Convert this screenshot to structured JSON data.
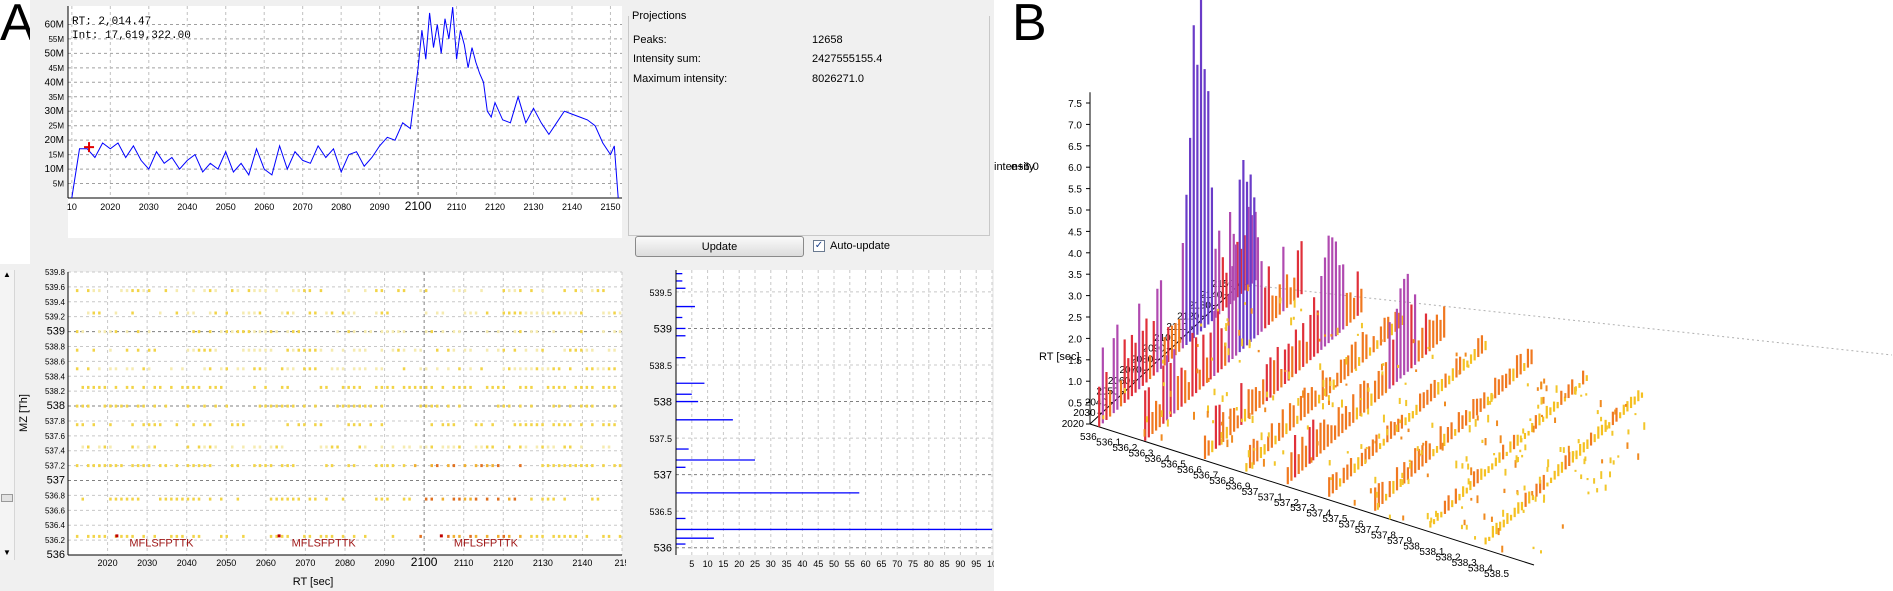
{
  "panel_a": {
    "letter": "A"
  },
  "panel_b": {
    "letter": "B"
  },
  "tic": {
    "rt_label": "RT:",
    "rt_value": "2,014.47",
    "int_label": "Int:",
    "int_value": "17,619,322.00",
    "y_ticks": [
      {
        "v": 5,
        "t": "5M",
        "major": false
      },
      {
        "v": 10,
        "t": "10M",
        "major": true
      },
      {
        "v": 15,
        "t": "15M",
        "major": false
      },
      {
        "v": 20,
        "t": "20M",
        "major": true
      },
      {
        "v": 25,
        "t": "25M",
        "major": false
      },
      {
        "v": 30,
        "t": "30M",
        "major": true
      },
      {
        "v": 35,
        "t": "35M",
        "major": false
      },
      {
        "v": 40,
        "t": "40M",
        "major": true
      },
      {
        "v": 45,
        "t": "45M",
        "major": false
      },
      {
        "v": 50,
        "t": "50M",
        "major": true
      },
      {
        "v": 55,
        "t": "55M",
        "major": false
      },
      {
        "v": 60,
        "t": "60M",
        "major": true
      }
    ],
    "x_ticks": [
      {
        "v": 2010,
        "t": "10",
        "major": false
      },
      {
        "v": 2020,
        "t": "2020",
        "major": false
      },
      {
        "v": 2030,
        "t": "2030",
        "major": false
      },
      {
        "v": 2040,
        "t": "2040",
        "major": false
      },
      {
        "v": 2050,
        "t": "2050",
        "major": false
      },
      {
        "v": 2060,
        "t": "2060",
        "major": false
      },
      {
        "v": 2070,
        "t": "2070",
        "major": false
      },
      {
        "v": 2080,
        "t": "2080",
        "major": false
      },
      {
        "v": 2090,
        "t": "2090",
        "major": false
      },
      {
        "v": 2100,
        "t": "2100",
        "major": true
      },
      {
        "v": 2110,
        "t": "2110",
        "major": false
      },
      {
        "v": 2120,
        "t": "2120",
        "major": false
      },
      {
        "v": 2130,
        "t": "2130",
        "major": false
      },
      {
        "v": 2140,
        "t": "2140",
        "major": false
      },
      {
        "v": 2150,
        "t": "2150",
        "major": false
      }
    ]
  },
  "projections": {
    "title": "Projections",
    "rows": [
      {
        "label": "Peaks:",
        "value": "12658"
      },
      {
        "label": "Intensity sum:",
        "value": "2427555155.4"
      },
      {
        "label": "Maximum intensity:",
        "value": "8026271.0"
      }
    ],
    "update_label": "Update",
    "auto_update_label": "Auto-update",
    "auto_update_checked": "✓"
  },
  "peak_map": {
    "ylabel": "MZ [Th]",
    "xlabel": "RT [sec]",
    "annotation": "MFLSFPTTK",
    "y_ticks": [
      {
        "v": 536,
        "t": "536",
        "major": true
      },
      {
        "v": 536.2,
        "t": "536.2",
        "major": false
      },
      {
        "v": 536.4,
        "t": "536.4",
        "major": false
      },
      {
        "v": 536.6,
        "t": "536.6",
        "major": false
      },
      {
        "v": 536.8,
        "t": "536.8",
        "major": false
      },
      {
        "v": 537,
        "t": "537",
        "major": true
      },
      {
        "v": 537.2,
        "t": "537.2",
        "major": false
      },
      {
        "v": 537.4,
        "t": "537.4",
        "major": false
      },
      {
        "v": 537.6,
        "t": "537.6",
        "major": false
      },
      {
        "v": 537.8,
        "t": "537.8",
        "major": false
      },
      {
        "v": 538,
        "t": "538",
        "major": true
      },
      {
        "v": 538.2,
        "t": "538.2",
        "major": false
      },
      {
        "v": 538.4,
        "t": "538.4",
        "major": false
      },
      {
        "v": 538.6,
        "t": "538.6",
        "major": false
      },
      {
        "v": 538.8,
        "t": "538.8",
        "major": false
      },
      {
        "v": 539,
        "t": "539",
        "major": true
      },
      {
        "v": 539.2,
        "t": "539.2",
        "major": false
      },
      {
        "v": 539.4,
        "t": "539.4",
        "major": false
      },
      {
        "v": 539.6,
        "t": "539.6",
        "major": false
      },
      {
        "v": 539.8,
        "t": "539.8",
        "major": false
      }
    ],
    "x_ticks": [
      {
        "v": 2020,
        "t": "2020",
        "major": false
      },
      {
        "v": 2030,
        "t": "2030",
        "major": false
      },
      {
        "v": 2040,
        "t": "2040",
        "major": false
      },
      {
        "v": 2050,
        "t": "2050",
        "major": false
      },
      {
        "v": 2060,
        "t": "2060",
        "major": false
      },
      {
        "v": 2070,
        "t": "2070",
        "major": false
      },
      {
        "v": 2080,
        "t": "2080",
        "major": false
      },
      {
        "v": 2090,
        "t": "2090",
        "major": false
      },
      {
        "v": 2100,
        "t": "2100",
        "major": true
      },
      {
        "v": 2110,
        "t": "2110",
        "major": false
      },
      {
        "v": 2120,
        "t": "2120",
        "major": false
      },
      {
        "v": 2130,
        "t": "2130",
        "major": false
      },
      {
        "v": 2140,
        "t": "2140",
        "major": false
      },
      {
        "v": 2150,
        "t": "215",
        "major": false
      }
    ]
  },
  "mz_projection": {
    "y_ticks": [
      {
        "v": 536,
        "t": "536",
        "major": true
      },
      {
        "v": 536.5,
        "t": "536.5",
        "major": false
      },
      {
        "v": 537,
        "t": "537",
        "major": true
      },
      {
        "v": 537.5,
        "t": "537.5",
        "major": false
      },
      {
        "v": 538,
        "t": "538",
        "major": true
      },
      {
        "v": 538.5,
        "t": "538.5",
        "major": false
      },
      {
        "v": 539,
        "t": "539",
        "major": true
      },
      {
        "v": 539.5,
        "t": "539.5",
        "major": false
      }
    ],
    "x_ticks": [
      {
        "v": 5,
        "t": "5"
      },
      {
        "v": 10,
        "t": "10"
      },
      {
        "v": 15,
        "t": "15"
      },
      {
        "v": 20,
        "t": "20"
      },
      {
        "v": 25,
        "t": "25"
      },
      {
        "v": 30,
        "t": "30"
      },
      {
        "v": 35,
        "t": "35"
      },
      {
        "v": 40,
        "t": "40"
      },
      {
        "v": 45,
        "t": "45"
      },
      {
        "v": 50,
        "t": "50"
      },
      {
        "v": 55,
        "t": "55"
      },
      {
        "v": 60,
        "t": "60"
      },
      {
        "v": 65,
        "t": "65"
      },
      {
        "v": 70,
        "t": "70"
      },
      {
        "v": 75,
        "t": "75"
      },
      {
        "v": 80,
        "t": "80"
      },
      {
        "v": 85,
        "t": "85"
      },
      {
        "v": 90,
        "t": "90"
      },
      {
        "v": 95,
        "t": "95"
      },
      {
        "v": 100,
        "t": "10"
      }
    ]
  },
  "view_3d": {
    "z_title": "intensity",
    "z_exponent": "e+6.0",
    "rt_axis_title": "RT [sec]",
    "z_ticks": [
      {
        "v": 0.5,
        "t": "0.5"
      },
      {
        "v": 1.0,
        "t": "1.0"
      },
      {
        "v": 1.5,
        "t": "1.5"
      },
      {
        "v": 2.0,
        "t": "2.0"
      },
      {
        "v": 2.5,
        "t": "2.5"
      },
      {
        "v": 3.0,
        "t": "3.0"
      },
      {
        "v": 3.5,
        "t": "3.5"
      },
      {
        "v": 4.0,
        "t": "4.0"
      },
      {
        "v": 4.5,
        "t": "4.5"
      },
      {
        "v": 5.0,
        "t": "5.0"
      },
      {
        "v": 5.5,
        "t": "5.5"
      },
      {
        "v": 6.0,
        "t": "6.0"
      },
      {
        "v": 6.5,
        "t": "6.5"
      },
      {
        "v": 7.0,
        "t": "7.0"
      },
      {
        "v": 7.5,
        "t": "7.5"
      }
    ],
    "rt_ticks": [
      {
        "v": 2020,
        "t": "2020"
      },
      {
        "v": 2030,
        "t": "2030"
      },
      {
        "v": 2040,
        "t": "2040"
      },
      {
        "v": 2050,
        "t": "2050"
      },
      {
        "v": 2060,
        "t": "2060"
      },
      {
        "v": 2070,
        "t": "2070"
      },
      {
        "v": 2080,
        "t": "2080"
      },
      {
        "v": 2090,
        "t": "2090"
      },
      {
        "v": 2100,
        "t": "2100"
      },
      {
        "v": 2110,
        "t": "2110"
      },
      {
        "v": 2120,
        "t": "2120"
      },
      {
        "v": 2130,
        "t": "2130"
      },
      {
        "v": 2140,
        "t": "2140"
      },
      {
        "v": 2150,
        "t": "2150"
      }
    ],
    "mz_ticks": [
      "536",
      "536.1",
      "536.2",
      "536.3",
      "536.4",
      "536.5",
      "536.6",
      "536.7",
      "536.8",
      "536.9",
      "537",
      "537.1",
      "537.2",
      "537.3",
      "537.4",
      "537.5",
      "537.6",
      "537.7",
      "537.8",
      "537.9",
      "538",
      "538.1",
      "538.2",
      "538.3",
      "538.4",
      "538.5"
    ]
  },
  "chart_data": [
    {
      "type": "line",
      "x": [
        2010,
        2012,
        2014,
        2016,
        2018,
        2020,
        2022,
        2024,
        2026,
        2028,
        2030,
        2032,
        2034,
        2036,
        2038,
        2040,
        2042,
        2044,
        2046,
        2048,
        2050,
        2052,
        2054,
        2056,
        2058,
        2060,
        2062,
        2064,
        2066,
        2068,
        2070,
        2072,
        2074,
        2076,
        2078,
        2080,
        2082,
        2084,
        2086,
        2088,
        2090,
        2092,
        2094,
        2096,
        2098,
        2100,
        2101,
        2102,
        2103,
        2104,
        2105,
        2106,
        2107,
        2108,
        2109,
        2110,
        2111,
        2112,
        2113,
        2114,
        2115,
        2116,
        2117,
        2118,
        2119,
        2120,
        2122,
        2124,
        2126,
        2128,
        2130,
        2132,
        2134,
        2136,
        2138,
        2140,
        2142,
        2144,
        2146,
        2148,
        2150,
        2151,
        2152
      ],
      "series": [
        {
          "name": "Int",
          "color": "#0000ff",
          "values": [
            0,
            17,
            17,
            14,
            19,
            17,
            19,
            14,
            18,
            13,
            10,
            16,
            12,
            14,
            10,
            13,
            15,
            9,
            12,
            10,
            16,
            9,
            12,
            8,
            17,
            10,
            8,
            18,
            10,
            16,
            13,
            12,
            18,
            14,
            17,
            9,
            15,
            16,
            11,
            14,
            18,
            21,
            20,
            26,
            24,
            45,
            58,
            48,
            64,
            52,
            60,
            50,
            62,
            55,
            66,
            48,
            58,
            53,
            45,
            52,
            47,
            43,
            40,
            30,
            28,
            33,
            27,
            26,
            35,
            26,
            31,
            26,
            22,
            26,
            30,
            29,
            28,
            27,
            25,
            19,
            15,
            18,
            0
          ]
        }
      ],
      "xlim": [
        2009,
        2153
      ],
      "ylim": [
        0,
        65
      ],
      "grid": true,
      "marker": {
        "x": 2014.47,
        "y": 17.6
      }
    },
    {
      "type": "scatter",
      "xlabel": "RT [sec]",
      "ylabel": "MZ [Th]",
      "xlim": [
        2010,
        2150
      ],
      "ylim": [
        536,
        539.8
      ],
      "grid": true,
      "annotations": [
        {
          "text": "MFLSFPTTK",
          "x": 2025,
          "y": 536.25
        },
        {
          "text": "MFLSFPTTK",
          "x": 2066,
          "y": 536.25
        },
        {
          "text": "MFLSFPTTK",
          "x": 2107,
          "y": 536.25
        }
      ]
    },
    {
      "type": "bar",
      "orientation": "horizontal",
      "ylim": [
        535.9,
        539.8
      ],
      "xlim": [
        0,
        100
      ],
      "series": [
        {
          "name": "",
          "color": "#0000ff",
          "values": [
            {
              "mz": 536.25,
              "v": 100
            },
            {
              "mz": 536.13,
              "v": 12
            },
            {
              "mz": 536.05,
              "v": 3
            },
            {
              "mz": 536.4,
              "v": 3
            },
            {
              "mz": 536.75,
              "v": 58
            },
            {
              "mz": 537.2,
              "v": 25
            },
            {
              "mz": 537.1,
              "v": 3
            },
            {
              "mz": 537.35,
              "v": 4
            },
            {
              "mz": 537.75,
              "v": 18
            },
            {
              "mz": 538.0,
              "v": 7
            },
            {
              "mz": 538.1,
              "v": 5
            },
            {
              "mz": 538.25,
              "v": 9
            },
            {
              "mz": 538.6,
              "v": 3
            },
            {
              "mz": 538.9,
              "v": 3
            },
            {
              "mz": 539.0,
              "v": 3
            },
            {
              "mz": 539.15,
              "v": 2
            },
            {
              "mz": 539.3,
              "v": 6
            },
            {
              "mz": 539.55,
              "v": 3
            },
            {
              "mz": 539.65,
              "v": 2
            },
            {
              "mz": 539.75,
              "v": 2
            }
          ]
        }
      ]
    }
  ]
}
